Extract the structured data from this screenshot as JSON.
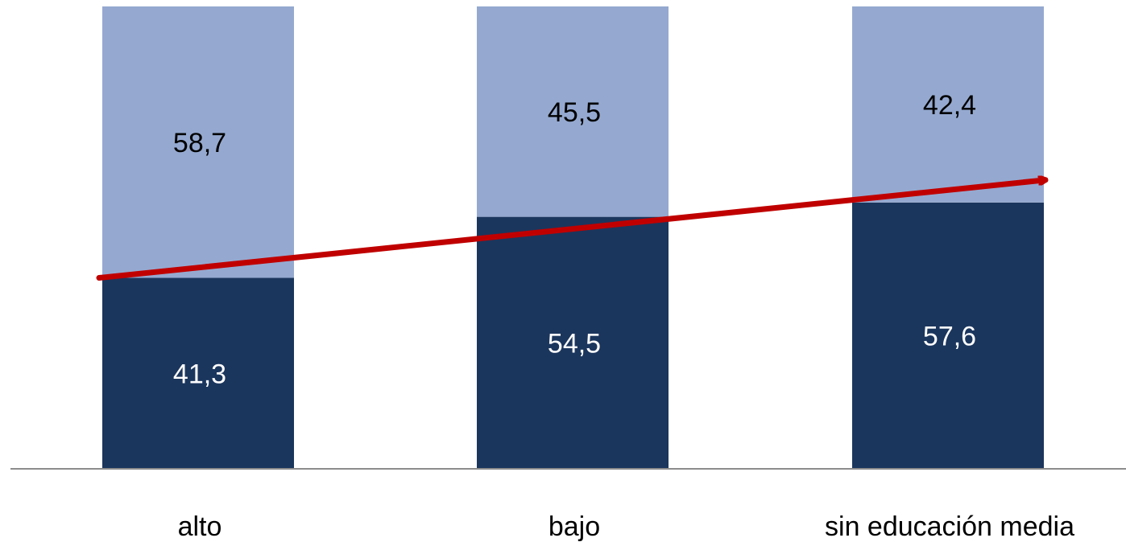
{
  "chart_data": {
    "type": "bar",
    "stacked": true,
    "categories": [
      "alto",
      "bajo",
      "sin educación media"
    ],
    "series": [
      {
        "values": [
          41.3,
          54.5,
          57.6
        ],
        "labels": [
          "41,3",
          "54,5",
          "57,6"
        ],
        "color": "#1b365d"
      },
      {
        "values": [
          58.7,
          45.5,
          42.4
        ],
        "labels": [
          "58,7",
          "45,5",
          "42,4"
        ],
        "color": "#95a9d0"
      }
    ],
    "ylim": [
      0,
      100
    ],
    "grid": false,
    "legend": "none",
    "annotation": {
      "type": "arrow",
      "color": "#c00000",
      "from": {
        "category": "alto",
        "y": 41.3
      },
      "to": {
        "category": "sin educación media",
        "y": 57.6
      }
    }
  }
}
